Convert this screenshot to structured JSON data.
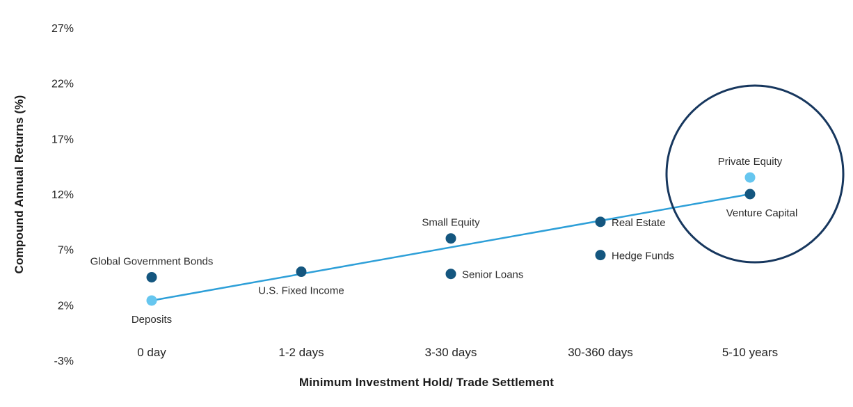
{
  "chart_data": {
    "type": "scatter",
    "title": "",
    "xlabel": "Minimum Investment Hold/ Trade Settlement",
    "ylabel": "Compound Annual Returns (%)",
    "categories": [
      "0 day",
      "1-2 days",
      "3-30 days",
      "30-360 days",
      "5-10 years"
    ],
    "y_ticks": [
      {
        "label": "27%",
        "value": 27
      },
      {
        "label": "22%",
        "value": 22
      },
      {
        "label": "17%",
        "value": 17
      },
      {
        "label": "12%",
        "value": 12
      },
      {
        "label": "7%",
        "value": 7
      },
      {
        "label": "2%",
        "value": 2
      },
      {
        "label": "-3%",
        "value": -3
      }
    ],
    "ylim": [
      -3,
      27
    ],
    "grid": false,
    "legend": "none",
    "points": [
      {
        "label": "Deposits",
        "category": "0 day",
        "x_index": 0,
        "value": 2.4,
        "color_key": "light",
        "label_position": "below"
      },
      {
        "label": "Global Government Bonds",
        "category": "0 day",
        "x_index": 0,
        "value": 4.5,
        "color_key": "dark",
        "label_position": "above"
      },
      {
        "label": "U.S. Fixed Income",
        "category": "1-2 days",
        "x_index": 1,
        "value": 5.0,
        "color_key": "dark",
        "label_position": "below"
      },
      {
        "label": "Senior Loans",
        "category": "3-30 days",
        "x_index": 2,
        "value": 4.8,
        "color_key": "dark",
        "label_position": "right"
      },
      {
        "label": "Small Equity",
        "category": "3-30 days",
        "x_index": 2,
        "value": 8.0,
        "color_key": "dark",
        "label_position": "above"
      },
      {
        "label": "Hedge Funds",
        "category": "30-360 days",
        "x_index": 3,
        "value": 6.5,
        "color_key": "dark",
        "label_position": "right"
      },
      {
        "label": "Real Estate",
        "category": "30-360 days",
        "x_index": 3,
        "value": 9.5,
        "color_key": "dark",
        "label_position": "right"
      },
      {
        "label": "Private Equity",
        "category": "5-10 years",
        "x_index": 4,
        "value": 13.5,
        "color_key": "light",
        "label_position": "above"
      },
      {
        "label": "Venture Capital",
        "category": "5-10 years",
        "x_index": 4,
        "value": 12.0,
        "color_key": "dark",
        "label_position": "below-right"
      }
    ],
    "trend_line": {
      "from": "Deposits",
      "to": "Venture Capital"
    },
    "annotation_circle": {
      "encircles": [
        "Private Equity",
        "Venture Capital"
      ]
    },
    "colors": {
      "dark_dot": "#14567f",
      "light_dot": "#66c6ef",
      "trend_line": "#2d9fd8",
      "annotation_circle": "#17375e",
      "point_label_text": "#2b2b2b",
      "tick_text": "#222222",
      "axis_title_text": "#1a1a1a"
    }
  }
}
